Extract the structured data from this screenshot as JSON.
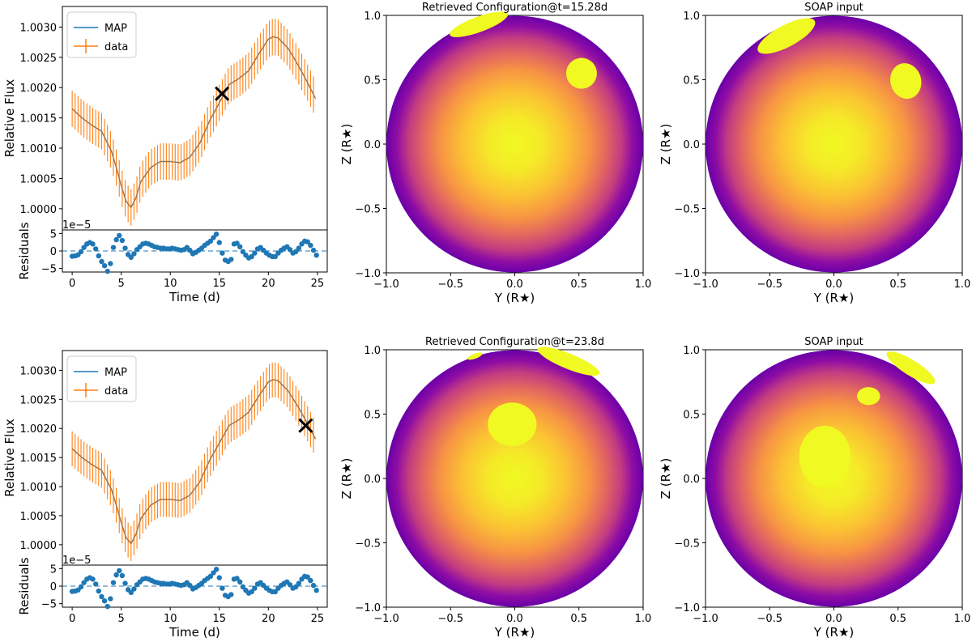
{
  "figure": {
    "axis_tick_color": "#000000",
    "colors": {
      "map": "#1f77b4",
      "data": "#ff7f0e",
      "residual": "#1f77b4",
      "spot": "#f0f921"
    }
  },
  "chart_data": [
    {
      "id": "lc-top",
      "type": "line",
      "ylabel": "Relative Flux",
      "xlim": [
        -1,
        26
      ],
      "ylim": [
        0.99965,
        1.00334
      ],
      "yticks": [
        "1.0000",
        "1.0005",
        "1.0010",
        "1.0015",
        "1.0020",
        "1.0025",
        "1.0030"
      ],
      "ytick_values": [
        1.0,
        1.0005,
        1.001,
        1.0015,
        1.002,
        1.0025,
        1.003
      ],
      "legend": [
        "MAP",
        "data"
      ],
      "marker": {
        "x": 15.28,
        "y": 1.0019,
        "symbol": "×"
      },
      "series": [
        {
          "name": "MAP",
          "x": [
            0,
            1,
            2,
            3,
            4,
            4.5,
            5,
            5.5,
            6,
            6.5,
            7,
            8,
            9,
            10,
            11,
            12,
            13,
            14,
            15,
            16,
            17,
            18,
            19,
            20,
            20.5,
            21,
            22,
            23,
            24,
            24.8
          ],
          "y": [
            1.00165,
            1.0015,
            1.00138,
            1.00128,
            1.00095,
            1.00068,
            1.00038,
            1.00012,
            1.00002,
            1.00018,
            1.00045,
            1.00068,
            1.00078,
            1.00078,
            1.00076,
            1.00085,
            1.00108,
            1.00145,
            1.00175,
            1.00205,
            1.00215,
            1.00228,
            1.00255,
            1.0028,
            1.00284,
            1.00282,
            1.00265,
            1.00238,
            1.00208,
            1.00182
          ]
        },
        {
          "name": "data",
          "errorbar": 0.0003
        }
      ]
    },
    {
      "id": "res-top",
      "type": "scatter",
      "ylabel": "Residuals",
      "xlabel": "Time (d)",
      "offset_label": "1e−5",
      "xlim": [
        -1,
        26
      ],
      "ylim": [
        -6,
        6
      ],
      "xticks": [
        "0",
        "5",
        "10",
        "15",
        "20",
        "25"
      ],
      "xtick_values": [
        0,
        5,
        10,
        15,
        20,
        25
      ],
      "yticks": [
        "−5",
        "0",
        "5"
      ],
      "ytick_values": [
        -5,
        0,
        5
      ],
      "x": [
        0,
        0.3,
        0.6,
        0.9,
        1.2,
        1.5,
        1.8,
        2.1,
        2.4,
        2.7,
        3.0,
        3.3,
        3.6,
        3.9,
        4.2,
        4.5,
        4.8,
        5.1,
        5.4,
        5.7,
        6.0,
        6.3,
        6.6,
        6.9,
        7.2,
        7.5,
        7.8,
        8.1,
        8.4,
        8.7,
        9.0,
        9.3,
        9.6,
        9.9,
        10.2,
        10.5,
        10.8,
        11.1,
        11.4,
        11.7,
        12.0,
        12.3,
        12.6,
        12.9,
        13.2,
        13.5,
        13.8,
        14.1,
        14.4,
        14.7,
        15.0,
        15.3,
        15.6,
        15.9,
        16.2,
        16.5,
        16.8,
        17.1,
        17.4,
        17.7,
        18.0,
        18.3,
        18.6,
        18.9,
        19.2,
        19.5,
        19.8,
        20.1,
        20.4,
        20.7,
        21.0,
        21.3,
        21.6,
        21.9,
        22.2,
        22.5,
        22.8,
        23.1,
        23.4,
        23.7,
        24.0,
        24.3,
        24.6,
        24.9
      ],
      "values": [
        -1.5,
        -1.4,
        -1.1,
        -0.2,
        1.0,
        2.0,
        2.4,
        2.0,
        0.6,
        -1.4,
        -3.0,
        -4.2,
        -5.8,
        -3.6,
        1.0,
        3.2,
        4.4,
        3.0,
        0.8,
        -1.0,
        -1.8,
        -0.8,
        0.4,
        1.2,
        2.0,
        2.2,
        2.0,
        1.6,
        1.2,
        1.0,
        0.8,
        0.8,
        0.6,
        0.6,
        0.8,
        0.6,
        0.4,
        0.2,
        0.4,
        1.0,
        0.2,
        -0.8,
        -0.4,
        0.2,
        0.8,
        1.6,
        2.2,
        2.8,
        3.8,
        4.8,
        2.4,
        -0.6,
        -2.6,
        -3.0,
        -2.4,
        2.0,
        2.2,
        1.2,
        -0.2,
        -1.2,
        -2.0,
        -1.6,
        -0.6,
        0.6,
        1.0,
        0.2,
        -0.6,
        -1.2,
        -1.6,
        -1.6,
        -0.6,
        0.2,
        0.8,
        1.2,
        0.4,
        -0.6,
        -0.2,
        0.8,
        2.0,
        2.8,
        2.6,
        1.6,
        0.2,
        -1.2
      ]
    },
    {
      "id": "disk-top",
      "type": "heatmap",
      "title": "Retrieved Configuration@t=15.28d",
      "xlabel": "Y (R★)",
      "ylabel": "Z (R★)",
      "xlim": [
        -1,
        1
      ],
      "ylim": [
        -1,
        1
      ],
      "xticks": [
        "−1.0",
        "−0.5",
        "0.0",
        "0.5",
        "1.0"
      ],
      "xtick_values": [
        -1,
        -0.5,
        0,
        0.5,
        1
      ],
      "yticks": [
        "−1.0",
        "−0.5",
        "0.0",
        "0.5",
        "1.0"
      ],
      "ytick_values": [
        -1,
        -0.5,
        0,
        0.5,
        1
      ],
      "spots": [
        {
          "y": -0.28,
          "z": 0.93,
          "ry": 0.24,
          "rz": 0.06,
          "angle": -20
        },
        {
          "y": 0.52,
          "z": 0.55,
          "ry": 0.12,
          "rz": 0.12,
          "angle": -10
        }
      ]
    },
    {
      "id": "soap-top",
      "type": "heatmap",
      "title": "SOAP input",
      "xlabel": "Y (R★)",
      "ylabel": "Z (R★)",
      "xlim": [
        -1,
        1
      ],
      "ylim": [
        -1,
        1
      ],
      "xticks": [
        "−1.0",
        "−0.5",
        "0.0",
        "0.5",
        "1.0"
      ],
      "xtick_values": [
        -1,
        -0.5,
        0,
        0.5,
        1
      ],
      "yticks": [
        "−1.0",
        "−0.5",
        "0.0",
        "0.5",
        "1.0"
      ],
      "ytick_values": [
        -1,
        -0.5,
        0,
        0.5,
        1
      ],
      "spots": [
        {
          "y": -0.37,
          "z": 0.84,
          "ry": 0.25,
          "rz": 0.085,
          "angle": -28
        },
        {
          "y": 0.56,
          "z": 0.49,
          "ry": 0.12,
          "rz": 0.14,
          "angle": -15
        }
      ]
    },
    {
      "id": "lc-bottom",
      "type": "line",
      "ylabel": "Relative Flux",
      "xlim": [
        -1,
        26
      ],
      "ylim": [
        0.99965,
        1.00334
      ],
      "yticks": [
        "1.0000",
        "1.0005",
        "1.0010",
        "1.0015",
        "1.0020",
        "1.0025",
        "1.0030"
      ],
      "ytick_values": [
        1.0,
        1.0005,
        1.001,
        1.0015,
        1.002,
        1.0025,
        1.003
      ],
      "legend": [
        "MAP",
        "data"
      ],
      "marker": {
        "x": 23.8,
        "y": 1.00205,
        "symbol": "×"
      },
      "series": [
        {
          "name": "MAP",
          "x": [
            0,
            1,
            2,
            3,
            4,
            4.5,
            5,
            5.5,
            6,
            6.5,
            7,
            8,
            9,
            10,
            11,
            12,
            13,
            14,
            15,
            16,
            17,
            18,
            19,
            20,
            20.5,
            21,
            22,
            23,
            24,
            24.8
          ],
          "y": [
            1.00165,
            1.0015,
            1.00138,
            1.00128,
            1.00095,
            1.00068,
            1.00038,
            1.00012,
            1.00002,
            1.00018,
            1.00045,
            1.00068,
            1.00078,
            1.00078,
            1.00076,
            1.00085,
            1.00108,
            1.00145,
            1.00175,
            1.00205,
            1.00215,
            1.00228,
            1.00255,
            1.0028,
            1.00284,
            1.00282,
            1.00265,
            1.00238,
            1.00208,
            1.00182
          ]
        },
        {
          "name": "data",
          "errorbar": 0.0003
        }
      ]
    },
    {
      "id": "res-bottom",
      "type": "scatter",
      "ylabel": "Residuals",
      "xlabel": "Time (d)",
      "offset_label": "1e−5",
      "xlim": [
        -1,
        26
      ],
      "ylim": [
        -6,
        6
      ],
      "xticks": [
        "0",
        "5",
        "10",
        "15",
        "20",
        "25"
      ],
      "xtick_values": [
        0,
        5,
        10,
        15,
        20,
        25
      ],
      "yticks": [
        "−5",
        "0",
        "5"
      ],
      "ytick_values": [
        -5,
        0,
        5
      ],
      "x": [
        0,
        0.3,
        0.6,
        0.9,
        1.2,
        1.5,
        1.8,
        2.1,
        2.4,
        2.7,
        3.0,
        3.3,
        3.6,
        3.9,
        4.2,
        4.5,
        4.8,
        5.1,
        5.4,
        5.7,
        6.0,
        6.3,
        6.6,
        6.9,
        7.2,
        7.5,
        7.8,
        8.1,
        8.4,
        8.7,
        9.0,
        9.3,
        9.6,
        9.9,
        10.2,
        10.5,
        10.8,
        11.1,
        11.4,
        11.7,
        12.0,
        12.3,
        12.6,
        12.9,
        13.2,
        13.5,
        13.8,
        14.1,
        14.4,
        14.7,
        15.0,
        15.3,
        15.6,
        15.9,
        16.2,
        16.5,
        16.8,
        17.1,
        17.4,
        17.7,
        18.0,
        18.3,
        18.6,
        18.9,
        19.2,
        19.5,
        19.8,
        20.1,
        20.4,
        20.7,
        21.0,
        21.3,
        21.6,
        21.9,
        22.2,
        22.5,
        22.8,
        23.1,
        23.4,
        23.7,
        24.0,
        24.3,
        24.6,
        24.9
      ],
      "values": [
        -1.5,
        -1.4,
        -1.1,
        -0.2,
        1.0,
        2.0,
        2.4,
        2.0,
        0.6,
        -1.4,
        -3.0,
        -4.2,
        -5.8,
        -3.6,
        1.0,
        3.2,
        4.4,
        3.0,
        0.8,
        -1.0,
        -1.8,
        -0.8,
        0.4,
        1.2,
        2.0,
        2.2,
        2.0,
        1.6,
        1.2,
        1.0,
        0.8,
        0.8,
        0.6,
        0.6,
        0.8,
        0.6,
        0.4,
        0.2,
        0.4,
        1.0,
        0.2,
        -0.8,
        -0.4,
        0.2,
        0.8,
        1.6,
        2.2,
        2.8,
        3.8,
        4.8,
        2.4,
        -0.6,
        -2.6,
        -3.0,
        -2.4,
        2.0,
        2.2,
        1.2,
        -0.2,
        -1.2,
        -2.0,
        -1.6,
        -0.6,
        0.6,
        1.0,
        0.2,
        -0.6,
        -1.2,
        -1.6,
        -1.6,
        -0.6,
        0.2,
        0.8,
        1.2,
        0.4,
        -0.6,
        -0.2,
        0.8,
        2.0,
        2.8,
        2.6,
        1.6,
        0.2,
        -1.2
      ]
    },
    {
      "id": "disk-bottom",
      "type": "heatmap",
      "title": "Retrieved Configuration@t=23.8d",
      "xlabel": "Y (R★)",
      "ylabel": "Z (R★)",
      "xlim": [
        -1,
        1
      ],
      "ylim": [
        -1,
        1
      ],
      "xticks": [
        "−1.0",
        "−0.5",
        "0.0",
        "0.5",
        "1.0"
      ],
      "xtick_values": [
        -1,
        -0.5,
        0,
        0.5,
        1
      ],
      "yticks": [
        "−1.0",
        "−0.5",
        "0.0",
        "0.5",
        "1.0"
      ],
      "ytick_values": [
        -1,
        -0.5,
        0,
        0.5,
        1
      ],
      "spots": [
        {
          "y": -0.31,
          "z": 0.95,
          "ry": 0.06,
          "rz": 0.02,
          "angle": -20
        },
        {
          "y": 0.42,
          "z": 0.91,
          "ry": 0.26,
          "rz": 0.06,
          "angle": 22
        },
        {
          "y": -0.02,
          "z": 0.42,
          "ry": 0.19,
          "rz": 0.17,
          "angle": 0
        }
      ]
    },
    {
      "id": "soap-bottom",
      "type": "heatmap",
      "title": "SOAP input",
      "xlabel": "Y (R★)",
      "ylabel": "Z (R★)",
      "xlim": [
        -1,
        1
      ],
      "ylim": [
        -1,
        1
      ],
      "xticks": [
        "−1.0",
        "−0.5",
        "0.0",
        "0.5",
        "1.0"
      ],
      "xtick_values": [
        -1,
        -0.5,
        0,
        0.5,
        1
      ],
      "yticks": [
        "−1.0",
        "−0.5",
        "0.0",
        "0.5",
        "1.0"
      ],
      "ytick_values": [
        -1,
        -0.5,
        0,
        0.5,
        1
      ],
      "spots": [
        {
          "y": 0.6,
          "z": 0.86,
          "ry": 0.22,
          "rz": 0.06,
          "angle": 32
        },
        {
          "y": 0.27,
          "z": 0.64,
          "ry": 0.09,
          "rz": 0.07,
          "angle": 0
        },
        {
          "y": -0.07,
          "z": 0.17,
          "ry": 0.2,
          "rz": 0.24,
          "angle": 0
        }
      ]
    }
  ]
}
